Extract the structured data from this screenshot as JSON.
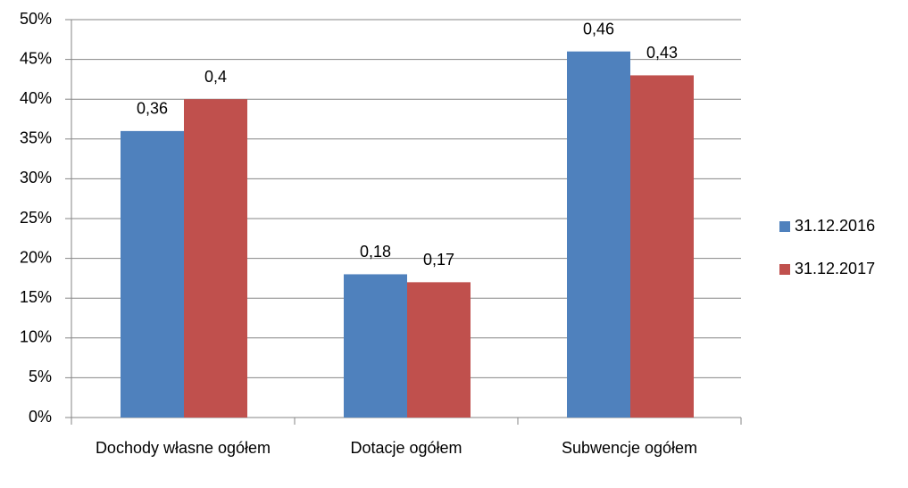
{
  "chart_data": {
    "type": "bar",
    "categories": [
      "Dochody własne ogółem",
      "Dotacje ogółem",
      "Subwencje ogółem"
    ],
    "series": [
      {
        "name": "31.12.2016",
        "color": "#4f81bd",
        "values": [
          36,
          18,
          46
        ],
        "value_labels": [
          "0,36",
          "0,18",
          "0,46"
        ]
      },
      {
        "name": "31.12.2017",
        "color": "#c0504d",
        "values": [
          40,
          17,
          43
        ],
        "value_labels": [
          "0,4",
          "0,17",
          "0,43"
        ]
      }
    ],
    "ylim": [
      0,
      50
    ],
    "yticks": [
      {
        "value": 0,
        "label": "0%"
      },
      {
        "value": 5,
        "label": "5%"
      },
      {
        "value": 10,
        "label": "10%"
      },
      {
        "value": 15,
        "label": "15%"
      },
      {
        "value": 20,
        "label": "20%"
      },
      {
        "value": 25,
        "label": "25%"
      },
      {
        "value": 30,
        "label": "30%"
      },
      {
        "value": 35,
        "label": "35%"
      },
      {
        "value": 40,
        "label": "40%"
      },
      {
        "value": 45,
        "label": "45%"
      },
      {
        "value": 50,
        "label": "50%"
      }
    ],
    "grid": true,
    "legend": "right"
  }
}
